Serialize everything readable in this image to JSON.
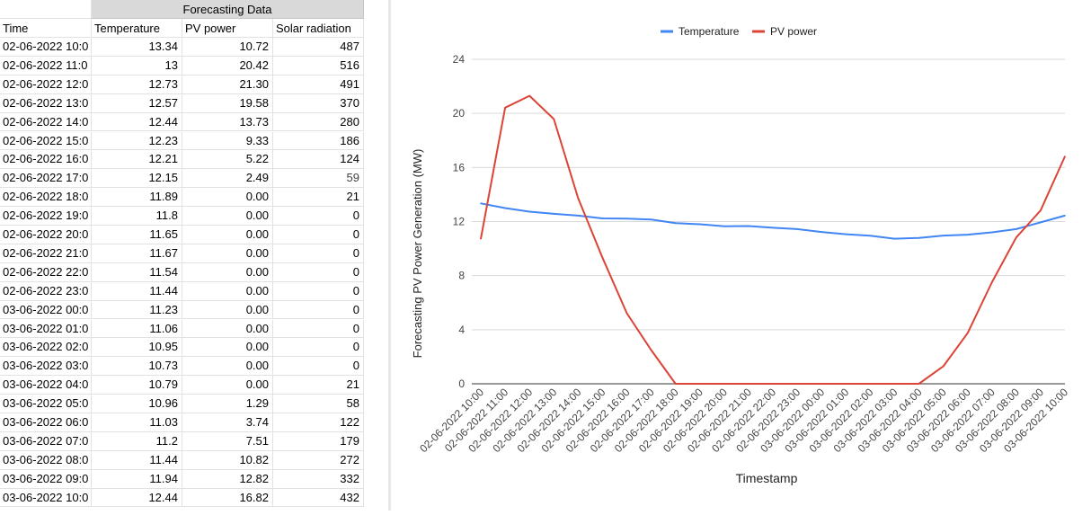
{
  "spreadsheet": {
    "title": "Forecasting Data",
    "headers": [
      "Time",
      "Temperature",
      "PV power",
      "Solar radiation"
    ],
    "rows": [
      [
        "02-06-2022 10:0",
        "13.34",
        "10.72",
        "487"
      ],
      [
        "02-06-2022 11:0",
        "13",
        "20.42",
        "516"
      ],
      [
        "02-06-2022 12:0",
        "12.73",
        "21.30",
        "491"
      ],
      [
        "02-06-2022 13:0",
        "12.57",
        "19.58",
        "370"
      ],
      [
        "02-06-2022 14:0",
        "12.44",
        "13.73",
        "280"
      ],
      [
        "02-06-2022 15:0",
        "12.23",
        "9.33",
        "186"
      ],
      [
        "02-06-2022 16:0",
        "12.21",
        "5.22",
        "124"
      ],
      [
        "02-06-2022 17:0",
        "12.15",
        "2.49",
        "59"
      ],
      [
        "02-06-2022 18:0",
        "11.89",
        "0.00",
        "21"
      ],
      [
        "02-06-2022 19:0",
        "11.8",
        "0.00",
        "0"
      ],
      [
        "02-06-2022 20:0",
        "11.65",
        "0.00",
        "0"
      ],
      [
        "02-06-2022 21:0",
        "11.67",
        "0.00",
        "0"
      ],
      [
        "02-06-2022 22:0",
        "11.54",
        "0.00",
        "0"
      ],
      [
        "02-06-2022 23:0",
        "11.44",
        "0.00",
        "0"
      ],
      [
        "03-06-2022 00:0",
        "11.23",
        "0.00",
        "0"
      ],
      [
        "03-06-2022 01:0",
        "11.06",
        "0.00",
        "0"
      ],
      [
        "03-06-2022 02:0",
        "10.95",
        "0.00",
        "0"
      ],
      [
        "03-06-2022 03:0",
        "10.73",
        "0.00",
        "0"
      ],
      [
        "03-06-2022 04:0",
        "10.79",
        "0.00",
        "21"
      ],
      [
        "03-06-2022 05:0",
        "10.96",
        "1.29",
        "58"
      ],
      [
        "03-06-2022 06:0",
        "11.03",
        "3.74",
        "122"
      ],
      [
        "03-06-2022 07:0",
        "11.2",
        "7.51",
        "179"
      ],
      [
        "03-06-2022 08:0",
        "11.44",
        "10.82",
        "272"
      ],
      [
        "03-06-2022 09:0",
        "11.94",
        "12.82",
        "332"
      ],
      [
        "03-06-2022 10:0",
        "12.44",
        "16.82",
        "432"
      ]
    ]
  },
  "chart_data": {
    "type": "line",
    "title": "",
    "xlabel": "Timestamp",
    "ylabel": "Forecasting PV Power Generation (MW)",
    "ylim": [
      0,
      24
    ],
    "yticks": [
      "0",
      "4",
      "8",
      "12",
      "16",
      "20",
      "24"
    ],
    "grid": true,
    "legend_position": "top",
    "categories": [
      "02-06-2022 10:00",
      "02-06-2022 11:00",
      "02-06-2022 12:00",
      "02-06-2022 13:00",
      "02-06-2022 14:00",
      "02-06-2022 15:00",
      "02-06-2022 16:00",
      "02-06-2022 17:00",
      "02-06-2022 18:00",
      "02-06-2022 19:00",
      "02-06-2022 20:00",
      "02-06-2022 21:00",
      "02-06-2022 22:00",
      "02-06-2022 23:00",
      "03-06-2022 00:00",
      "03-06-2022 01:00",
      "03-06-2022 02:00",
      "03-06-2022 03:00",
      "03-06-2022 04:00",
      "03-06-2022 05:00",
      "03-06-2022 06:00",
      "03-06-2022 07:00",
      "03-06-2022 08:00",
      "03-06-2022 09:00",
      "03-06-2022 10:00"
    ],
    "series": [
      {
        "name": "Temperature",
        "color": "#4285f4",
        "values": [
          13.34,
          13,
          12.73,
          12.57,
          12.44,
          12.23,
          12.21,
          12.15,
          11.89,
          11.8,
          11.65,
          11.67,
          11.54,
          11.44,
          11.23,
          11.06,
          10.95,
          10.73,
          10.79,
          10.96,
          11.03,
          11.2,
          11.44,
          11.94,
          12.44
        ]
      },
      {
        "name": "PV power",
        "color": "#db4437",
        "values": [
          10.72,
          20.42,
          21.3,
          19.58,
          13.73,
          9.33,
          5.22,
          2.49,
          0,
          0,
          0,
          0,
          0,
          0,
          0,
          0,
          0,
          0,
          0,
          1.29,
          3.74,
          7.51,
          10.82,
          12.82,
          16.82
        ]
      }
    ]
  }
}
